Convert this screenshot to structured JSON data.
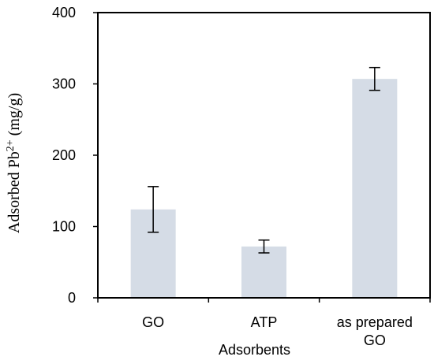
{
  "chart_data": {
    "type": "bar",
    "categories": [
      "GO",
      "ATP",
      "as prepared GO"
    ],
    "category_lines": [
      [
        "GO"
      ],
      [
        "ATP"
      ],
      [
        "as prepared",
        "GO"
      ]
    ],
    "values": [
      124,
      72,
      307
    ],
    "error_bars": [
      32,
      9,
      16
    ],
    "ylim": [
      0,
      400
    ],
    "yticks": [
      0,
      100,
      200,
      300,
      400
    ],
    "ytick_labels": [
      "0",
      "100",
      "200",
      "300",
      "400"
    ],
    "xlabel": "Adsorbents",
    "ylabel": {
      "base": "Adsorbed Pb",
      "superscript": "2+",
      "unit": " (mg/g)"
    },
    "bar_color": "#d5dce6",
    "grid": false,
    "frame": "box"
  }
}
